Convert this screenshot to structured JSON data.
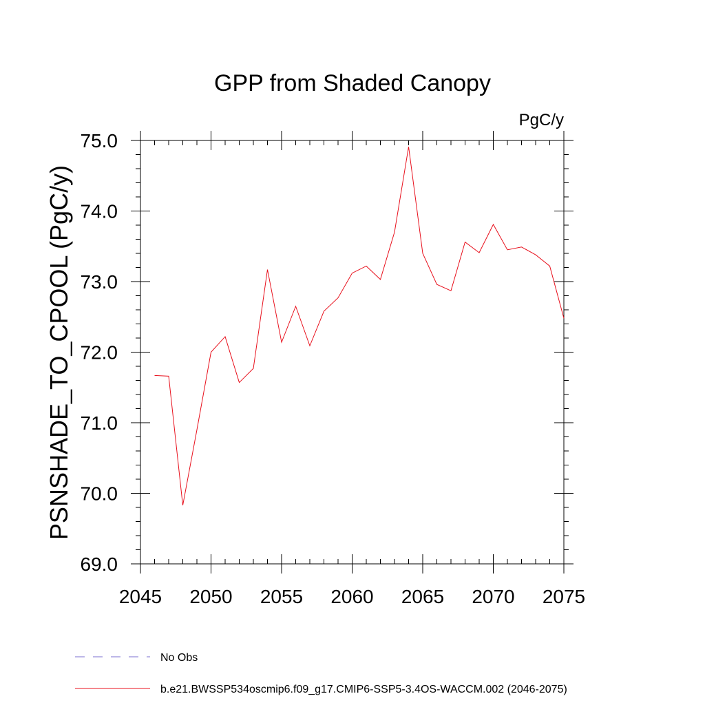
{
  "chart_data": {
    "type": "line",
    "title": "GPP from Shaded Canopy",
    "units": "PgC/y",
    "xlabel": "",
    "ylabel": "PSNSHADE_TO_CPOOL  (PgC/y)",
    "xlim": [
      2045,
      2075
    ],
    "ylim": [
      69.0,
      75.0
    ],
    "x_ticks": [
      2045,
      2050,
      2055,
      2060,
      2065,
      2070,
      2075
    ],
    "x_tick_labels": [
      "2045",
      "2050",
      "2055",
      "2060",
      "2065",
      "2070",
      "2075"
    ],
    "y_ticks": [
      69.0,
      70.0,
      71.0,
      72.0,
      73.0,
      74.0,
      75.0
    ],
    "y_tick_labels": [
      "69.0",
      "70.0",
      "71.0",
      "72.0",
      "73.0",
      "74.0",
      "75.0"
    ],
    "grid": false,
    "legend_position": "bottom-left",
    "series": [
      {
        "name": "b.e21.BWSSP534oscmip6.f09_g17.CMIP6-SSP5-3.4OS-WACCM.002 (2046-2075)",
        "color": "#e8101c",
        "style": "solid",
        "x": [
          2046,
          2047,
          2048,
          2049,
          2050,
          2051,
          2052,
          2053,
          2054,
          2055,
          2056,
          2057,
          2058,
          2059,
          2060,
          2061,
          2062,
          2063,
          2064,
          2065,
          2066,
          2067,
          2068,
          2069,
          2070,
          2071,
          2072,
          2073,
          2074,
          2075
        ],
        "values": [
          71.67,
          71.66,
          69.83,
          70.9,
          72.0,
          72.22,
          71.57,
          71.77,
          73.17,
          72.14,
          72.65,
          72.09,
          72.58,
          72.77,
          73.12,
          73.22,
          73.03,
          73.7,
          74.91,
          73.4,
          72.96,
          72.87,
          73.56,
          73.41,
          73.81,
          73.45,
          73.49,
          73.38,
          73.22,
          72.48
        ]
      }
    ],
    "legend": [
      {
        "label": "No Obs",
        "color": "#7b6fd0",
        "style": "dashed"
      },
      {
        "label": "b.e21.BWSSP534oscmip6.f09_g17.CMIP6-SSP5-3.4OS-WACCM.002 (2046-2075)",
        "color": "#e8101c",
        "style": "solid"
      }
    ]
  }
}
